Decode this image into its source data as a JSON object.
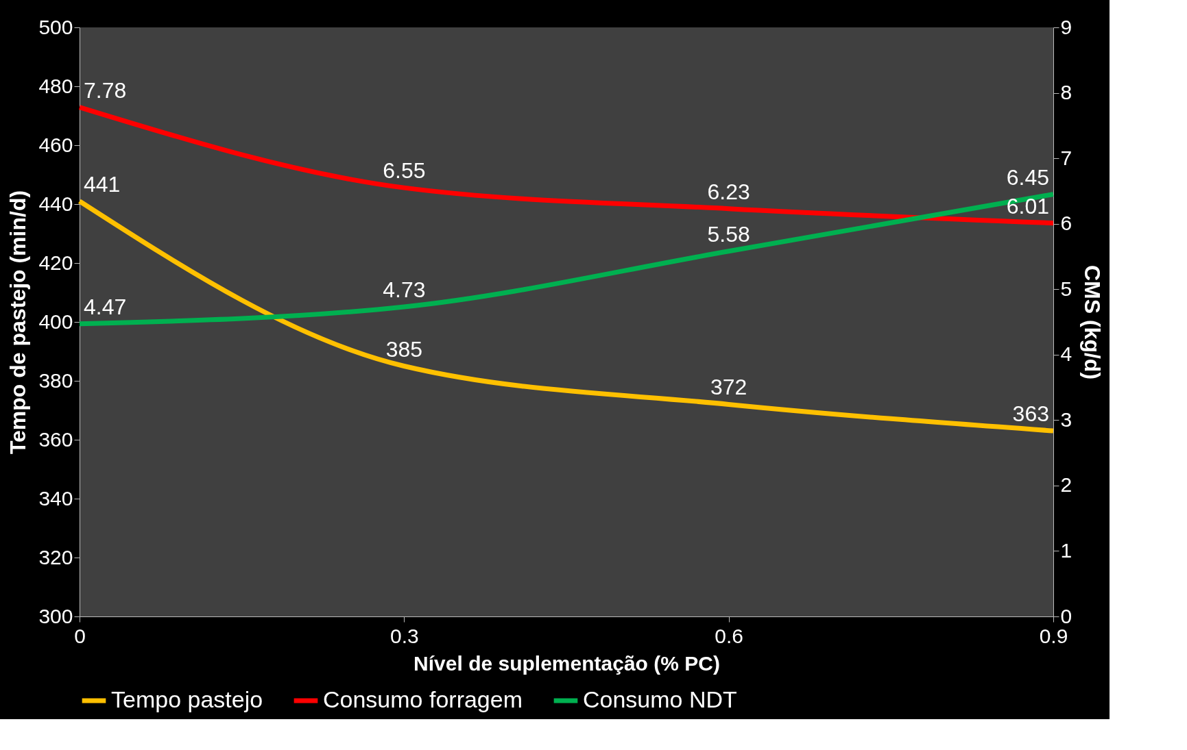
{
  "chart_data": {
    "type": "line",
    "xlabel": "Nível de suplementação  (% PC)",
    "ylabel": "Tempo de pastejo (min/d)",
    "y2label": "CMS (kg/d)",
    "x": [
      0,
      0.3,
      0.6,
      0.9
    ],
    "xlim": [
      0,
      0.9
    ],
    "xticks": [
      0,
      0.3,
      0.6,
      0.9
    ],
    "ylim": [
      300,
      500
    ],
    "yticks": [
      300,
      320,
      340,
      360,
      380,
      400,
      420,
      440,
      460,
      480,
      500
    ],
    "y2lim": [
      0,
      9
    ],
    "y2ticks": [
      0,
      1,
      2,
      3,
      4,
      5,
      6,
      7,
      8,
      9
    ],
    "series": [
      {
        "name": "Tempo pastejo",
        "color": "#ffc000",
        "values": [
          441,
          385,
          372,
          363
        ]
      },
      {
        "name": "Consumo forragem",
        "color": "#ff0000",
        "values": [
          7.78,
          6.55,
          6.23,
          6.01
        ],
        "axis": "y2"
      },
      {
        "name": "Consumo NDT",
        "color": "#00b050",
        "values": [
          4.47,
          4.73,
          5.58,
          6.45
        ],
        "axis": "y2"
      }
    ],
    "data_labels": true,
    "legend": "bottom",
    "grid": false,
    "marker": "none",
    "line_style": "solid"
  }
}
